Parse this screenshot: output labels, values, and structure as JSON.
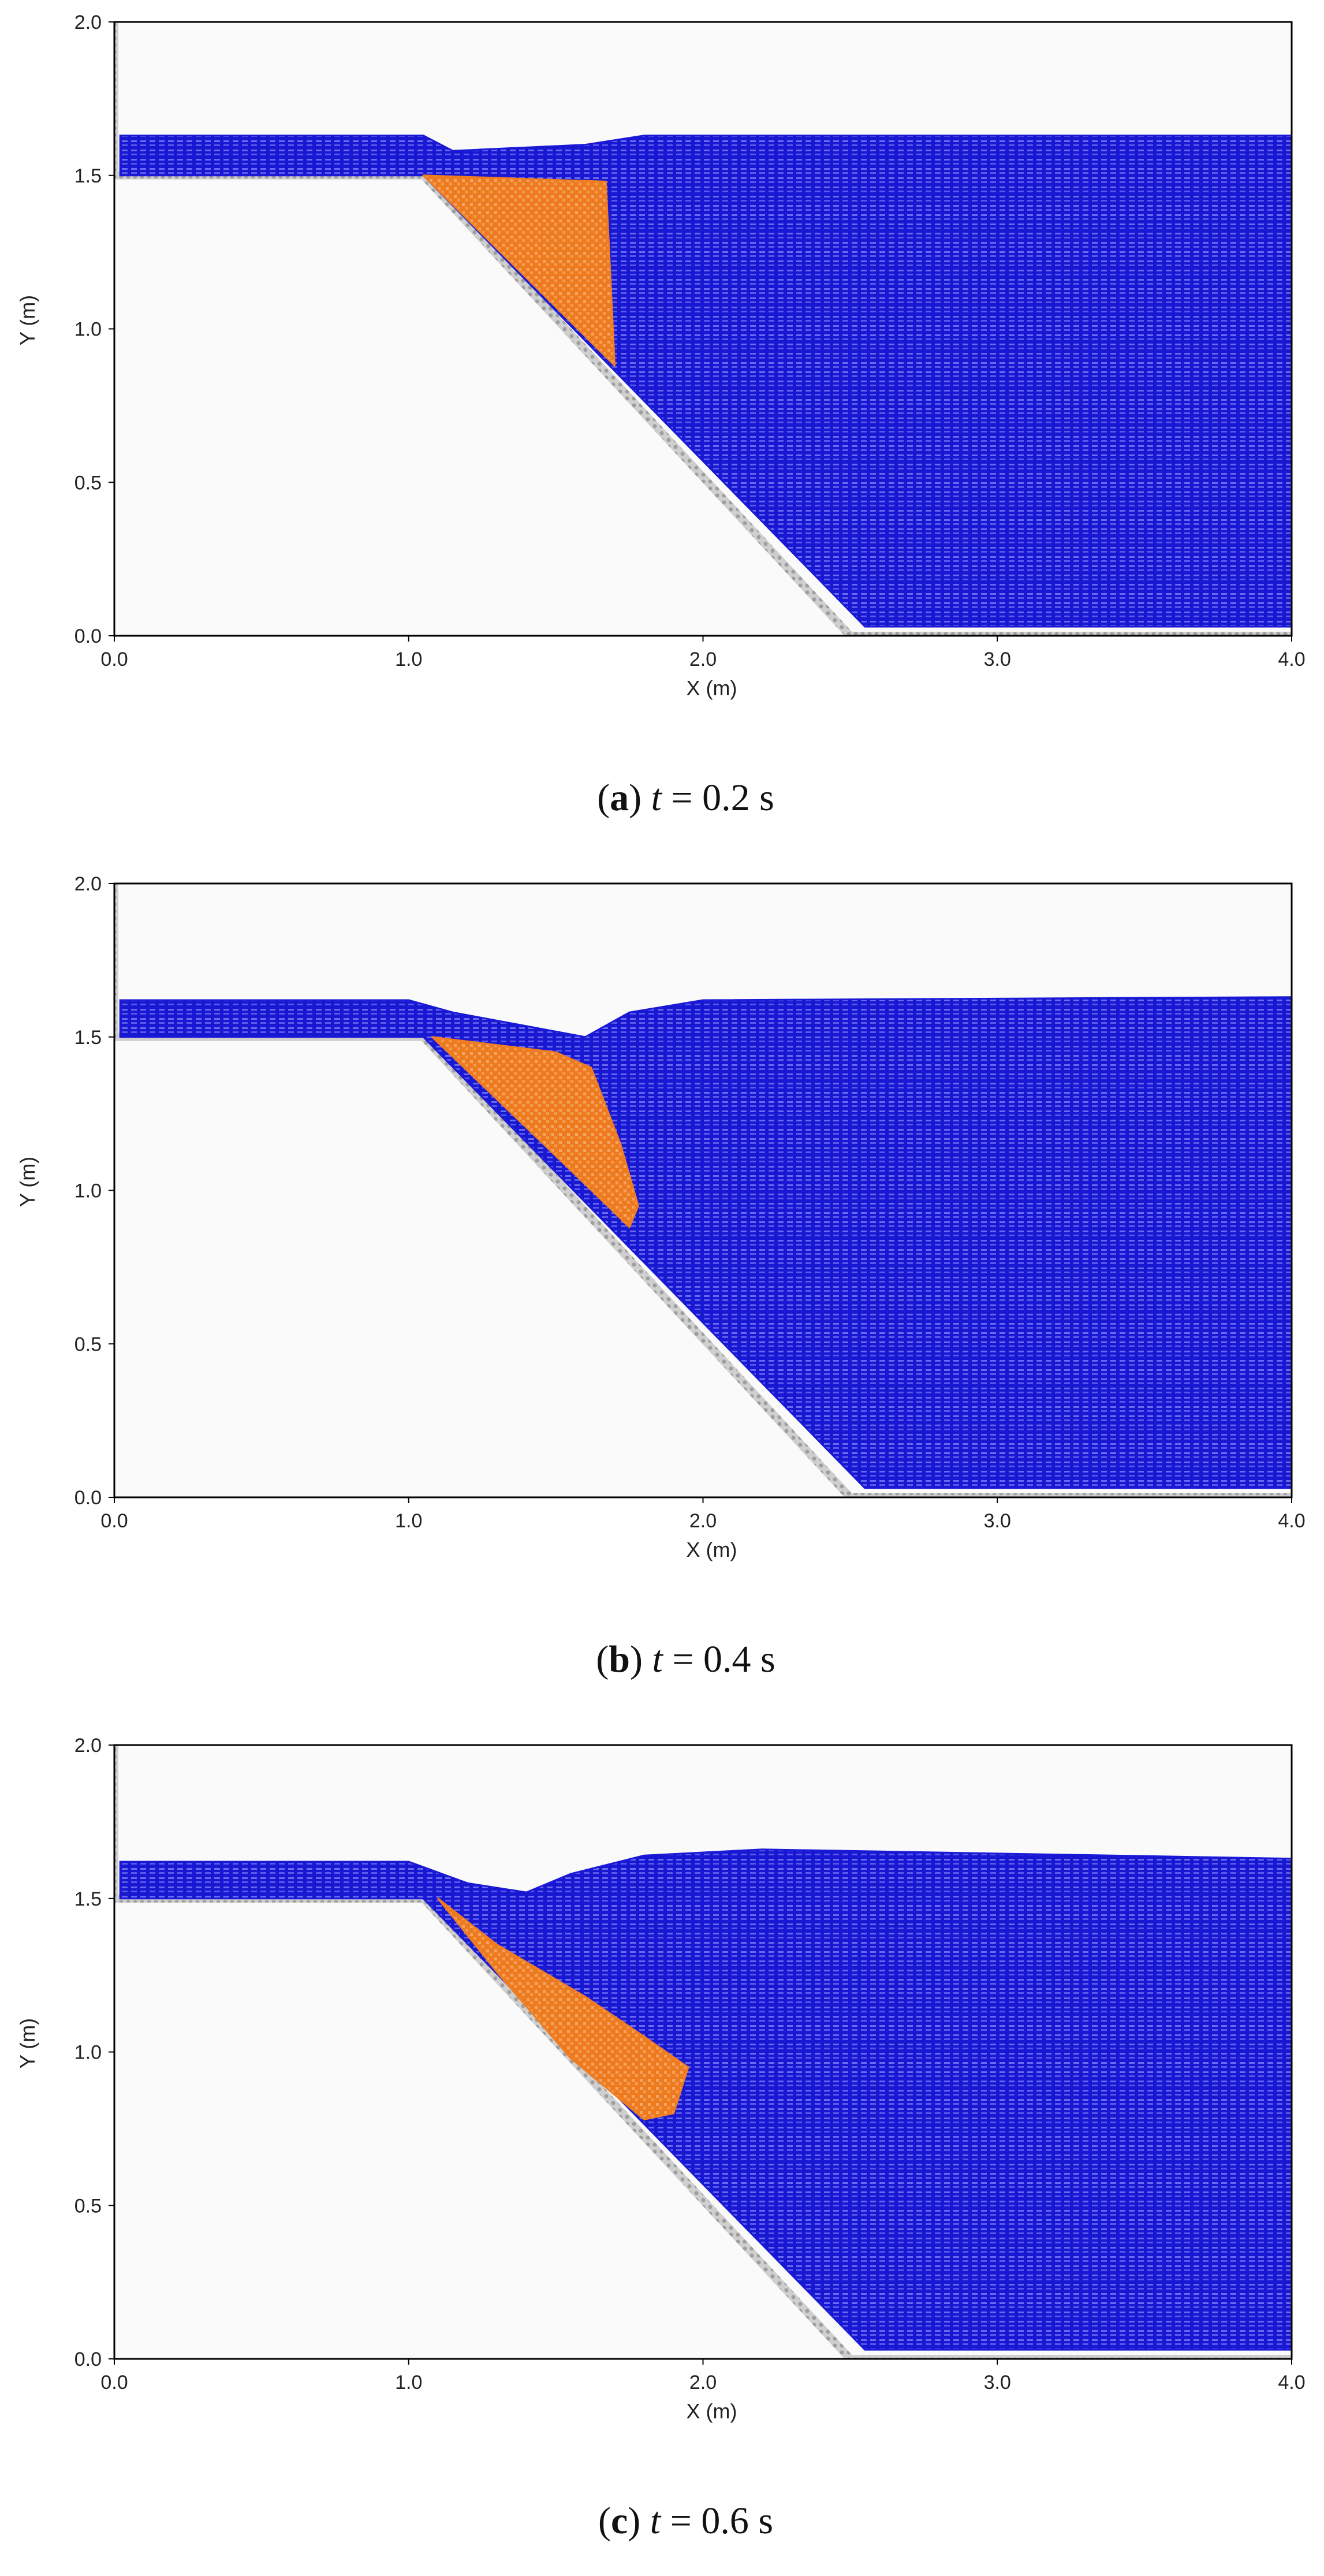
{
  "chart_data": [
    {
      "type": "scatter",
      "caption": {
        "letter": "a",
        "variable": "t",
        "value": "0.2",
        "unit": "s"
      },
      "xlabel": "X (m)",
      "ylabel": "Y (m)",
      "xlim": [
        0,
        4
      ],
      "ylim": [
        0,
        2
      ],
      "x_ticks": [
        "0.0",
        "1.0",
        "2.0",
        "3.0",
        "4.0"
      ],
      "y_ticks": [
        "0.0",
        "0.5",
        "1.0",
        "1.5",
        "2.0"
      ],
      "boundary": [
        [
          0,
          2.05
        ],
        [
          0,
          1.5
        ],
        [
          1.05,
          1.5
        ],
        [
          2.5,
          0
        ],
        [
          4.0,
          0
        ]
      ],
      "water": [
        [
          0.02,
          1.63
        ],
        [
          1.05,
          1.63
        ],
        [
          1.15,
          1.58
        ],
        [
          1.6,
          1.6
        ],
        [
          1.8,
          1.63
        ],
        [
          4.0,
          1.63
        ],
        [
          4.0,
          0.03
        ],
        [
          2.55,
          0.03
        ],
        [
          1.05,
          1.5
        ],
        [
          0.02,
          1.5
        ]
      ],
      "slide": [
        [
          1.05,
          1.5
        ],
        [
          1.67,
          1.48
        ],
        [
          1.7,
          0.88
        ]
      ],
      "colors": {
        "water": "#1a1ad6",
        "slide": "#ef7d22",
        "boundary": "#b8b8b8"
      }
    },
    {
      "type": "scatter",
      "caption": {
        "letter": "b",
        "variable": "t",
        "value": "0.4",
        "unit": "s"
      },
      "xlabel": "X (m)",
      "ylabel": "Y (m)",
      "xlim": [
        0,
        4
      ],
      "ylim": [
        0,
        2
      ],
      "x_ticks": [
        "0.0",
        "1.0",
        "2.0",
        "3.0",
        "4.0"
      ],
      "y_ticks": [
        "0.0",
        "0.5",
        "1.0",
        "1.5",
        "2.0"
      ],
      "boundary": [
        [
          0,
          2.05
        ],
        [
          0,
          1.5
        ],
        [
          1.05,
          1.5
        ],
        [
          2.5,
          0
        ],
        [
          4.0,
          0
        ]
      ],
      "water": [
        [
          0.02,
          1.62
        ],
        [
          1.0,
          1.62
        ],
        [
          1.15,
          1.58
        ],
        [
          1.6,
          1.5
        ],
        [
          1.75,
          1.58
        ],
        [
          2.0,
          1.62
        ],
        [
          4.0,
          1.63
        ],
        [
          4.0,
          0.03
        ],
        [
          2.55,
          0.03
        ],
        [
          1.05,
          1.5
        ],
        [
          0.02,
          1.5
        ]
      ],
      "slide": [
        [
          1.08,
          1.5
        ],
        [
          1.5,
          1.45
        ],
        [
          1.62,
          1.4
        ],
        [
          1.72,
          1.15
        ],
        [
          1.78,
          0.95
        ],
        [
          1.75,
          0.88
        ],
        [
          1.6,
          1.02
        ]
      ],
      "colors": {
        "water": "#1a1ad6",
        "slide": "#ef7d22",
        "boundary": "#b8b8b8"
      }
    },
    {
      "type": "scatter",
      "caption": {
        "letter": "c",
        "variable": "t",
        "value": "0.6",
        "unit": "s"
      },
      "xlabel": "X (m)",
      "ylabel": "Y (m)",
      "xlim": [
        0,
        4
      ],
      "ylim": [
        0,
        2
      ],
      "x_ticks": [
        "0.0",
        "1.0",
        "2.0",
        "3.0",
        "4.0"
      ],
      "y_ticks": [
        "0.0",
        "0.5",
        "1.0",
        "1.5",
        "2.0"
      ],
      "boundary": [
        [
          0,
          2.05
        ],
        [
          0,
          1.5
        ],
        [
          1.05,
          1.5
        ],
        [
          2.5,
          0
        ],
        [
          4.0,
          0
        ]
      ],
      "water": [
        [
          0.02,
          1.62
        ],
        [
          1.0,
          1.62
        ],
        [
          1.2,
          1.55
        ],
        [
          1.4,
          1.52
        ],
        [
          1.55,
          1.58
        ],
        [
          1.8,
          1.64
        ],
        [
          2.2,
          1.66
        ],
        [
          4.0,
          1.63
        ],
        [
          4.0,
          0.03
        ],
        [
          2.55,
          0.03
        ],
        [
          1.05,
          1.5
        ],
        [
          0.02,
          1.5
        ]
      ],
      "slide": [
        [
          1.1,
          1.5
        ],
        [
          1.3,
          1.35
        ],
        [
          1.6,
          1.18
        ],
        [
          1.8,
          1.05
        ],
        [
          1.95,
          0.95
        ],
        [
          1.9,
          0.8
        ],
        [
          1.8,
          0.78
        ],
        [
          1.55,
          0.98
        ],
        [
          1.3,
          1.26
        ]
      ],
      "colors": {
        "water": "#1a1ad6",
        "slide": "#ef7d22",
        "boundary": "#b8b8b8"
      }
    }
  ]
}
